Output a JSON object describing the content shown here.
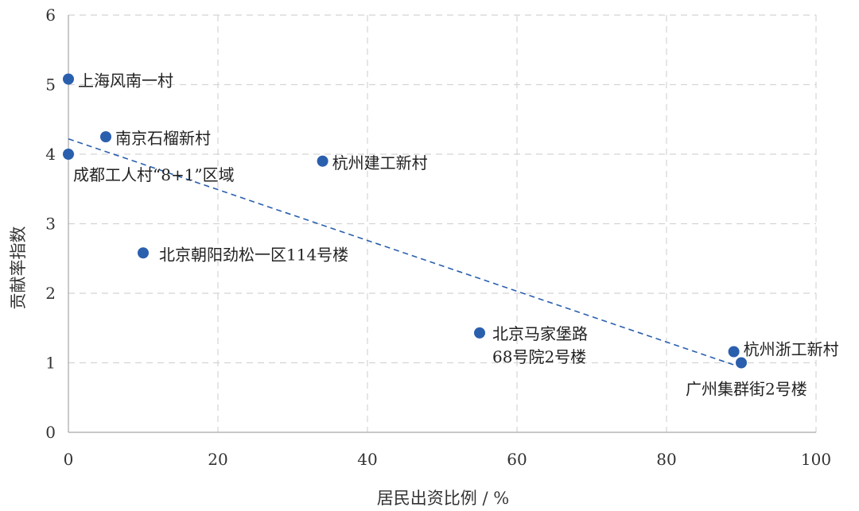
{
  "chart_data": {
    "type": "scatter",
    "title": "",
    "xlabel": "居民出资比例 / %",
    "ylabel": "贡献率指数",
    "xlim": [
      0,
      100
    ],
    "ylim": [
      0,
      6
    ],
    "xticks": [
      0,
      20,
      40,
      60,
      80,
      100
    ],
    "yticks": [
      0,
      1,
      2,
      3,
      4,
      5,
      6
    ],
    "grid": true,
    "legend": "none",
    "point_color": "#2a5fae",
    "trendline": {
      "style": "dashed",
      "color": "#2a5fae",
      "x_start": 0,
      "y_start": 4.22,
      "x_end": 89,
      "y_end": 0.97
    },
    "points": [
      {
        "x": 0,
        "y": 5.08,
        "label": [
          "上海风南一村"
        ]
      },
      {
        "x": 5,
        "y": 4.25,
        "label": [
          "南京石榴新村"
        ]
      },
      {
        "x": 0,
        "y": 4.0,
        "label": [
          "成都工人村“8+1”区域"
        ]
      },
      {
        "x": 34,
        "y": 3.9,
        "label": [
          "杭州建工新村"
        ]
      },
      {
        "x": 10,
        "y": 2.58,
        "label": [
          "北京朝阳劲松一区114号楼"
        ]
      },
      {
        "x": 55,
        "y": 1.43,
        "label": [
          "北京马家堡路",
          "68号院2号楼"
        ]
      },
      {
        "x": 89,
        "y": 1.16,
        "label": [
          "杭州浙工新村"
        ]
      },
      {
        "x": 90,
        "y": 1.0,
        "label": [
          "广州集群街2号楼"
        ]
      }
    ]
  }
}
